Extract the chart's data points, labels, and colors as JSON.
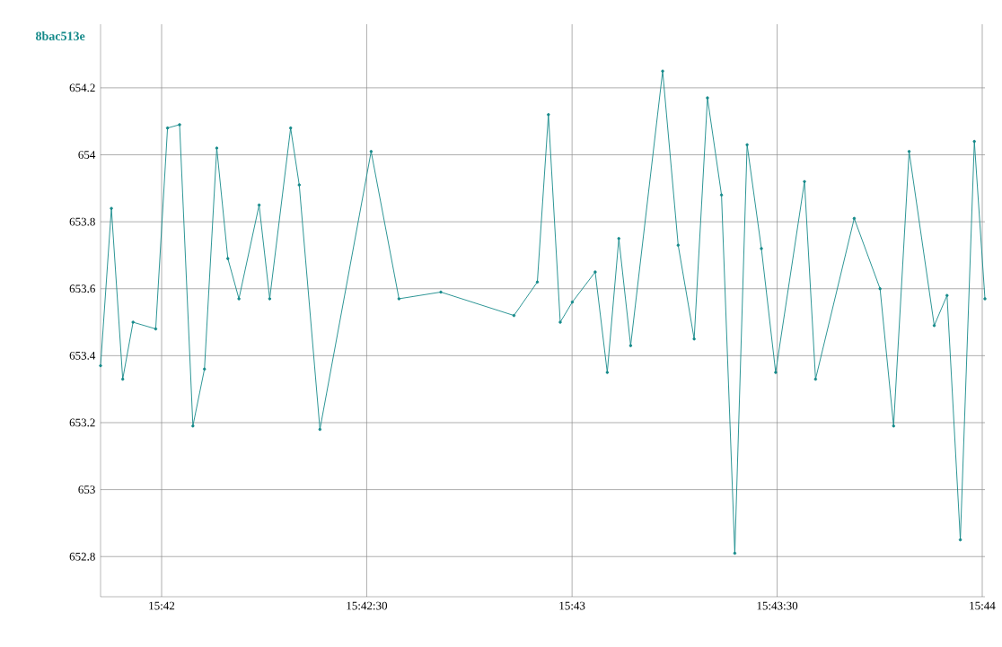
{
  "chart_data": {
    "type": "line",
    "title": "8bac513e",
    "color": "#168a8a",
    "marker": "circle",
    "grid": true,
    "x": [
      15.69752,
      15.69796,
      15.69842,
      15.69884,
      15.69976,
      15.70024,
      15.70073,
      15.70127,
      15.70174,
      15.70224,
      15.70269,
      15.70314,
      15.70396,
      15.70439,
      15.70524,
      15.70559,
      15.70643,
      15.70851,
      15.70964,
      15.71134,
      15.71431,
      15.71526,
      15.71571,
      15.71619,
      15.71668,
      15.71761,
      15.7181,
      15.71857,
      15.71905,
      15.72035,
      15.72098,
      15.72163,
      15.72217,
      15.72274,
      15.72328,
      15.72378,
      15.72436,
      15.72494,
      15.72611,
      15.72656,
      15.72813,
      15.72918,
      15.72973,
      15.73036,
      15.73138,
      15.7319,
      15.73244,
      15.73301,
      15.73344
    ],
    "values": [
      653.37,
      653.84,
      653.33,
      653.5,
      653.48,
      654.08,
      654.09,
      653.19,
      653.36,
      654.02,
      653.69,
      653.57,
      653.85,
      653.57,
      654.08,
      653.91,
      653.18,
      654.01,
      653.57,
      653.59,
      653.52,
      653.62,
      654.12,
      653.5,
      653.56,
      653.65,
      653.35,
      653.75,
      653.43,
      654.25,
      653.73,
      653.45,
      654.17,
      653.88,
      652.81,
      654.03,
      653.72,
      653.35,
      653.92,
      653.33,
      653.81,
      653.6,
      653.19,
      654.01,
      653.49,
      653.58,
      652.85,
      654.04,
      653.57
    ],
    "xlim": [
      15.69752,
      15.73344
    ],
    "ylim": [
      652.68,
      654.39
    ],
    "xticks": [
      {
        "value": 15.7,
        "label": "15:42"
      },
      {
        "value": 15.70833,
        "label": "15:42:30"
      },
      {
        "value": 15.71667,
        "label": "15:43"
      },
      {
        "value": 15.725,
        "label": "15:43:30"
      },
      {
        "value": 15.73333,
        "label": "15:44"
      }
    ],
    "yticks": [
      652.8,
      653,
      653.2,
      653.4,
      653.6,
      653.8,
      654,
      654.2
    ]
  }
}
